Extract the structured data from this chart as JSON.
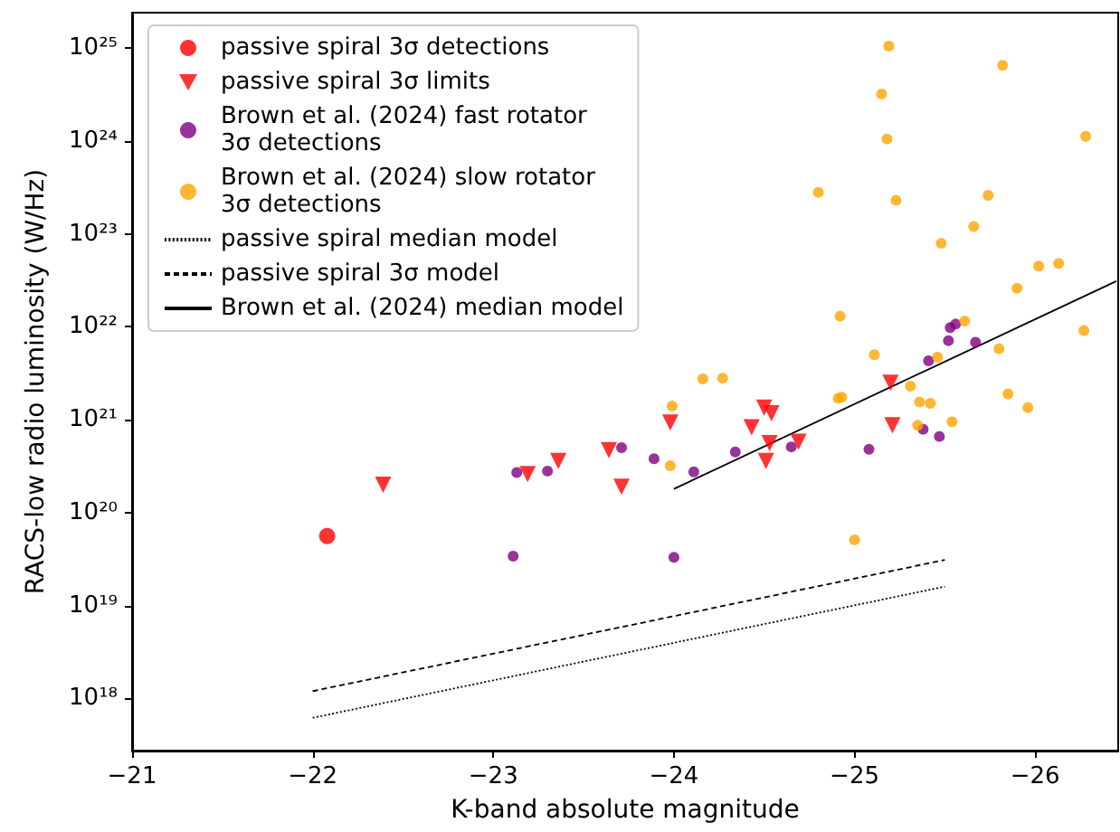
{
  "chart_data": {
    "type": "scatter",
    "xlabel": "K-band absolute magnitude",
    "ylabel": "RACS-low radio luminosity (W/Hz)",
    "log": "y",
    "legend": "top left",
    "xlim": [
      -21,
      -26.46
    ],
    "ylim": [
      2.75e+17,
      2.4e+25
    ],
    "xticks": [
      {
        "value": -21,
        "label": "−21"
      },
      {
        "value": -22,
        "label": "−22"
      },
      {
        "value": -23,
        "label": "−23"
      },
      {
        "value": -24,
        "label": "−24"
      },
      {
        "value": -25,
        "label": "−25"
      },
      {
        "value": -26,
        "label": "−26"
      }
    ],
    "yticks": [
      {
        "value": 1e+18,
        "label": "10¹⁸"
      },
      {
        "value": 1e+19,
        "label": "10¹⁹"
      },
      {
        "value": 1e+20,
        "label": "10²⁰"
      },
      {
        "value": 1e+21,
        "label": "10²¹"
      },
      {
        "value": 1e+22,
        "label": "10²²"
      },
      {
        "value": 1e+23,
        "label": "10²³"
      },
      {
        "value": 1e+24,
        "label": "10²⁴"
      },
      {
        "value": 1e+25,
        "label": "10²⁵"
      }
    ],
    "series": [
      {
        "name": "passive spiral 3σ detections",
        "marker": "circle",
        "color": "#ff0000",
        "x": [
          -22.08
        ],
        "values": [
          5.6e+19
        ]
      },
      {
        "name": "passive spiral 3σ limits",
        "marker": "triangle",
        "color": "#ff0000",
        "x": [
          -22.39,
          -23.19,
          -23.36,
          -23.64,
          -23.71,
          -23.98,
          -24.5,
          -24.54,
          -24.43,
          -24.53,
          -24.51,
          -24.69,
          -25.2,
          -25.21
        ],
        "values": [
          2e+20,
          2.6e+20,
          3.6e+20,
          4.7e+20,
          1.9e+20,
          9.3e+20,
          1.35e+21,
          1.17e+21,
          8.3e+20,
          5.6e+20,
          3.6e+20,
          5.8e+20,
          2.5e+21,
          8.7e+20
        ]
      },
      {
        "name": "Brown et al. (2024) fast rotator\n3σ detections",
        "marker": "circle",
        "color": "#800080",
        "x": [
          -23.11,
          -23.13,
          -23.3,
          -23.71,
          -23.89,
          -24.0,
          -24.11,
          -24.34,
          -24.65,
          -25.08,
          -25.38,
          -25.47,
          -25.41,
          -25.52,
          -25.53,
          -25.56,
          -25.67
        ],
        "values": [
          3.4e+19,
          2.7e+20,
          2.8e+20,
          5e+20,
          3.8e+20,
          3.3e+19,
          2.75e+20,
          4.5e+20,
          5.1e+20,
          4.8e+20,
          7.9e+20,
          6.6e+20,
          4.3e+21,
          7.1e+21,
          9.8e+21,
          1.07e+22,
          6.8e+21
        ]
      },
      {
        "name": "Brown et al. (2024) slow rotator\n3σ detections",
        "marker": "circle",
        "color": "#ffa500",
        "x": [
          -25.19,
          -25.82,
          -25.15,
          -25.18,
          -26.28,
          -24.8,
          -25.23,
          -25.74,
          -25.66,
          -25.48,
          -26.02,
          -26.13,
          -25.9,
          -24.92,
          -25.61,
          -26.27,
          -25.11,
          -25.46,
          -25.8,
          -24.16,
          -24.27,
          -23.99,
          -25.31,
          -25.36,
          -25.42,
          -25.85,
          -25.96,
          -24.91,
          -24.93,
          -23.98,
          -25.35,
          -25.54,
          -25.0
        ],
        "values": [
          1.05e+25,
          6.5e+24,
          3.2e+24,
          1.05e+24,
          1.12e+24,
          2.8e+23,
          2.3e+23,
          2.6e+23,
          1.2e+23,
          7.9e+22,
          4.5e+22,
          4.8e+22,
          2.6e+22,
          1.3e+22,
          1.15e+22,
          9.1e+21,
          5e+21,
          4.7e+21,
          5.8e+21,
          2.75e+21,
          2.8e+21,
          1.4e+21,
          2.3e+21,
          1.55e+21,
          1.5e+21,
          1.9e+21,
          1.35e+21,
          1.7e+21,
          1.75e+21,
          3.2e+20,
          8.7e+20,
          9.5e+20,
          5.1e+19
        ]
      },
      {
        "name": "passive spiral median model",
        "type": "line",
        "marker": "none",
        "line_style": "dotted",
        "color": "#000000",
        "x": [
          -22,
          -25.5
        ],
        "values": [
          6.2e+17,
          1.6e+19
        ]
      },
      {
        "name": "passive spiral 3σ model",
        "type": "line",
        "marker": "none",
        "line_style": "dashed",
        "color": "#000000",
        "x": [
          -22,
          -25.5
        ],
        "values": [
          1.2e+18,
          3.1e+19
        ]
      },
      {
        "name": "Brown et al. (2024) median model",
        "type": "line",
        "marker": "none",
        "line_style": "solid",
        "color": "#000000",
        "x": [
          -24.0,
          -26.45
        ],
        "values": [
          1.8e+20,
          3.1e+22
        ]
      }
    ]
  }
}
